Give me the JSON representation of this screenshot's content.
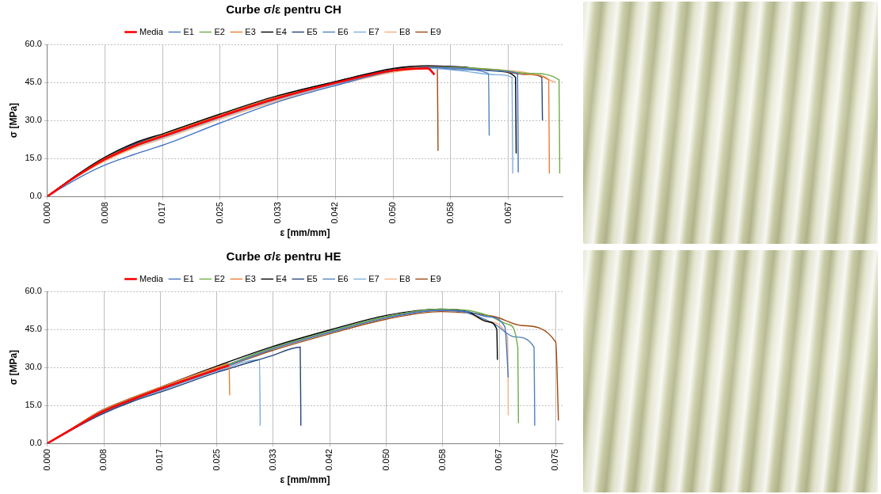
{
  "chart_data": [
    {
      "type": "line",
      "title": "Curbe σ/ε pentru CH",
      "xlabel": "ε [mm/mm]",
      "ylabel": "σ [MPa]",
      "xlim": [
        0,
        0.0745
      ],
      "ylim": [
        0,
        60
      ],
      "xticks": [
        {
          "value": 0,
          "label": "0.000"
        },
        {
          "value": 0.008333,
          "label": "0.008"
        },
        {
          "value": 0.016667,
          "label": "0.017"
        },
        {
          "value": 0.025,
          "label": "0.025"
        },
        {
          "value": 0.033333,
          "label": "0.033"
        },
        {
          "value": 0.041667,
          "label": "0.042"
        },
        {
          "value": 0.05,
          "label": "0.050"
        },
        {
          "value": 0.058333,
          "label": "0.058"
        },
        {
          "value": 0.066667,
          "label": "0.067"
        }
      ],
      "yticks": [
        {
          "value": 0,
          "label": "0.0"
        },
        {
          "value": 15,
          "label": "15.0"
        },
        {
          "value": 30,
          "label": "30.0"
        },
        {
          "value": 45,
          "label": "45.0"
        },
        {
          "value": 60,
          "label": "60.0"
        }
      ],
      "grid": true,
      "legend": "top",
      "series": [
        {
          "name": "E1",
          "color": "#4472c4",
          "x": [
            0,
            0.004,
            0.008,
            0.0125,
            0.017,
            0.025,
            0.033,
            0.042,
            0.05,
            0.055,
            0.06,
            0.065,
            0.068,
            0.0681
          ],
          "values": [
            0,
            6.5,
            12,
            16.5,
            20.5,
            29,
            37,
            44,
            49.5,
            51,
            50.5,
            49.5,
            48.5,
            9.5
          ]
        },
        {
          "name": "E2",
          "color": "#70ad47",
          "x": [
            0,
            0.004,
            0.008,
            0.0125,
            0.017,
            0.025,
            0.033,
            0.042,
            0.05,
            0.055,
            0.06,
            0.065,
            0.07,
            0.074,
            0.0741
          ],
          "values": [
            0,
            7.5,
            14,
            19.5,
            24,
            31.5,
            38.5,
            45,
            49.5,
            51,
            50.8,
            50,
            48.5,
            46,
            9
          ]
        },
        {
          "name": "E3",
          "color": "#ed7d31",
          "x": [
            0,
            0.004,
            0.008,
            0.0125,
            0.017,
            0.025,
            0.033,
            0.042,
            0.05,
            0.055,
            0.06,
            0.065,
            0.07,
            0.0725,
            0.0726
          ],
          "values": [
            0,
            7.5,
            14.5,
            20,
            24.5,
            32,
            39,
            45,
            49.8,
            51.2,
            50.8,
            49.8,
            48,
            46,
            9
          ]
        },
        {
          "name": "E4",
          "color": "#000000",
          "x": [
            0,
            0.004,
            0.008,
            0.0125,
            0.017,
            0.025,
            0.033,
            0.042,
            0.05,
            0.055,
            0.06,
            0.065,
            0.0677,
            0.0678
          ],
          "values": [
            0,
            8,
            15,
            21,
            25,
            32.5,
            39.5,
            45.5,
            50.5,
            51.5,
            51,
            49.5,
            47,
            17
          ]
        },
        {
          "name": "E5",
          "color": "#264478",
          "x": [
            0,
            0.004,
            0.008,
            0.0125,
            0.017,
            0.025,
            0.033,
            0.042,
            0.05,
            0.055,
            0.06,
            0.065,
            0.07,
            0.0715,
            0.0716
          ],
          "values": [
            0,
            7.8,
            14.5,
            20.5,
            24.5,
            32,
            39,
            45.5,
            50.2,
            51.5,
            51,
            49.5,
            48,
            47,
            30
          ]
        },
        {
          "name": "E6",
          "color": "#4f81bd",
          "x": [
            0,
            0.004,
            0.008,
            0.0125,
            0.017,
            0.025,
            0.033,
            0.042,
            0.05,
            0.055,
            0.06,
            0.0638,
            0.0639
          ],
          "values": [
            0,
            7.8,
            14.3,
            20,
            24,
            31.5,
            38.5,
            45,
            50,
            51,
            50,
            48.5,
            24
          ]
        },
        {
          "name": "E7",
          "color": "#7cafdd",
          "x": [
            0,
            0.004,
            0.008,
            0.0125,
            0.017,
            0.025,
            0.033,
            0.042,
            0.05,
            0.055,
            0.06,
            0.065,
            0.0672,
            0.0673
          ],
          "values": [
            0,
            7.5,
            14,
            19.5,
            23.5,
            31,
            38,
            44.5,
            49.5,
            50.5,
            49.5,
            48,
            47,
            9
          ]
        },
        {
          "name": "E8",
          "color": "#f4b183",
          "x": [
            0,
            0.004,
            0.008,
            0.0125,
            0.017,
            0.025,
            0.033,
            0.042,
            0.05,
            0.055,
            0.06,
            0.065,
            0.07,
            0.0735
          ],
          "values": [
            0,
            7.2,
            13.5,
            19,
            23,
            30.5,
            37.5,
            44,
            49,
            50.5,
            50.5,
            50,
            48.5,
            45
          ]
        },
        {
          "name": "E9",
          "color": "#9e480e",
          "x": [
            0,
            0.004,
            0.008,
            0.0125,
            0.017,
            0.025,
            0.033,
            0.042,
            0.05,
            0.055,
            0.0564,
            0.0565
          ],
          "values": [
            0,
            7.8,
            14.5,
            20.5,
            24.5,
            32,
            39,
            45.5,
            50,
            51.2,
            50.5,
            18
          ]
        },
        {
          "name": "Media",
          "color": "#ff0000",
          "x": [
            0,
            0.004,
            0.008,
            0.0125,
            0.017,
            0.025,
            0.033,
            0.042,
            0.05,
            0.055,
            0.056
          ],
          "values": [
            0,
            7.6,
            14.2,
            19.8,
            24,
            31.5,
            38.5,
            45,
            49.7,
            50.5,
            48
          ]
        }
      ]
    },
    {
      "type": "line",
      "title": "Curbe σ/ε pentru HE",
      "xlabel": "ε [mm/mm]",
      "ylabel": "σ [MPa]",
      "xlim": [
        0,
        0.076
      ],
      "ylim": [
        0,
        60
      ],
      "xticks": [
        {
          "value": 0,
          "label": "0.000"
        },
        {
          "value": 0.008333,
          "label": "0.008"
        },
        {
          "value": 0.016667,
          "label": "0.017"
        },
        {
          "value": 0.025,
          "label": "0.025"
        },
        {
          "value": 0.033333,
          "label": "0.033"
        },
        {
          "value": 0.041667,
          "label": "0.042"
        },
        {
          "value": 0.05,
          "label": "0.050"
        },
        {
          "value": 0.058333,
          "label": "0.058"
        },
        {
          "value": 0.066667,
          "label": "0.067"
        },
        {
          "value": 0.075,
          "label": "0.075"
        }
      ],
      "yticks": [
        {
          "value": 0,
          "label": "0.0"
        },
        {
          "value": 15,
          "label": "15.0"
        },
        {
          "value": 30,
          "label": "30.0"
        },
        {
          "value": 45,
          "label": "45.0"
        },
        {
          "value": 60,
          "label": "60.0"
        }
      ],
      "grid": true,
      "legend": "top",
      "series": [
        {
          "name": "E1",
          "color": "#4472c4",
          "x": [
            0,
            0.004,
            0.008,
            0.0125,
            0.017,
            0.025,
            0.033,
            0.042,
            0.05,
            0.058,
            0.062,
            0.065,
            0.0675,
            0.068
          ],
          "values": [
            0,
            6,
            12,
            17,
            21.5,
            29,
            37,
            44,
            49.5,
            52.5,
            52,
            50,
            46,
            26
          ]
        },
        {
          "name": "E2",
          "color": "#70ad47",
          "x": [
            0,
            0.004,
            0.008,
            0.0125,
            0.017,
            0.025,
            0.033,
            0.042,
            0.05,
            0.058,
            0.062,
            0.065,
            0.068,
            0.0694,
            0.0695
          ],
          "values": [
            0,
            6.2,
            12.5,
            17.5,
            22,
            29.5,
            37.5,
            44.5,
            50,
            53,
            52.5,
            50.5,
            47,
            38,
            8
          ]
        },
        {
          "name": "E3",
          "color": "#ed7d31",
          "x": [
            0,
            0.004,
            0.008,
            0.0125,
            0.017,
            0.025,
            0.0268,
            0.0269
          ],
          "values": [
            0,
            6.5,
            13,
            18,
            22.5,
            30,
            31.5,
            19
          ]
        },
        {
          "name": "E4",
          "color": "#000000",
          "x": [
            0,
            0.004,
            0.008,
            0.0125,
            0.017,
            0.025,
            0.033,
            0.042,
            0.05,
            0.058,
            0.062,
            0.065,
            0.0663,
            0.0664
          ],
          "values": [
            0,
            6.5,
            13,
            18,
            22.5,
            30.5,
            38,
            45,
            50.5,
            53,
            52,
            48,
            45,
            33
          ]
        },
        {
          "name": "E5",
          "color": "#264478",
          "x": [
            0,
            0.004,
            0.008,
            0.0125,
            0.017,
            0.025,
            0.033,
            0.0373,
            0.0374
          ],
          "values": [
            0,
            6,
            11.5,
            16.5,
            20.5,
            28,
            34.5,
            38,
            7
          ]
        },
        {
          "name": "E6",
          "color": "#4f81bd",
          "x": [
            0,
            0.004,
            0.008,
            0.0125,
            0.017,
            0.025,
            0.033,
            0.042,
            0.05,
            0.058,
            0.062,
            0.066,
            0.069,
            0.0718,
            0.0719
          ],
          "values": [
            0,
            6.3,
            12.5,
            17.5,
            22,
            29.5,
            37.5,
            44.5,
            50,
            52.5,
            51.5,
            47,
            42,
            38,
            7
          ]
        },
        {
          "name": "E7",
          "color": "#7cafdd",
          "x": [
            0,
            0.004,
            0.008,
            0.0125,
            0.017,
            0.025,
            0.0313,
            0.0314
          ],
          "values": [
            0,
            6,
            12,
            16.5,
            21,
            28.5,
            33,
            7
          ]
        },
        {
          "name": "E8",
          "color": "#f4b183",
          "x": [
            0,
            0.004,
            0.008,
            0.0125,
            0.017,
            0.025,
            0.033,
            0.042,
            0.05,
            0.058,
            0.062,
            0.065,
            0.0679,
            0.068
          ],
          "values": [
            0,
            6.2,
            12.3,
            17.3,
            21.8,
            29,
            37,
            44,
            49.5,
            52.5,
            51.5,
            48,
            42,
            11
          ]
        },
        {
          "name": "E9",
          "color": "#9e480e",
          "x": [
            0,
            0.004,
            0.008,
            0.0125,
            0.017,
            0.025,
            0.033,
            0.042,
            0.05,
            0.058,
            0.062,
            0.066,
            0.07,
            0.075,
            0.0754
          ],
          "values": [
            0,
            6,
            12,
            17,
            21.5,
            29,
            36.5,
            43.5,
            49,
            52,
            51.5,
            50,
            46.5,
            40,
            9
          ]
        },
        {
          "name": "Media",
          "color": "#ff0000",
          "x": [
            0,
            0.004,
            0.008,
            0.0125,
            0.017,
            0.025,
            0.0268
          ],
          "values": [
            0,
            6.2,
            12.3,
            17.3,
            21.8,
            29.2,
            30.8
          ]
        }
      ]
    }
  ]
}
